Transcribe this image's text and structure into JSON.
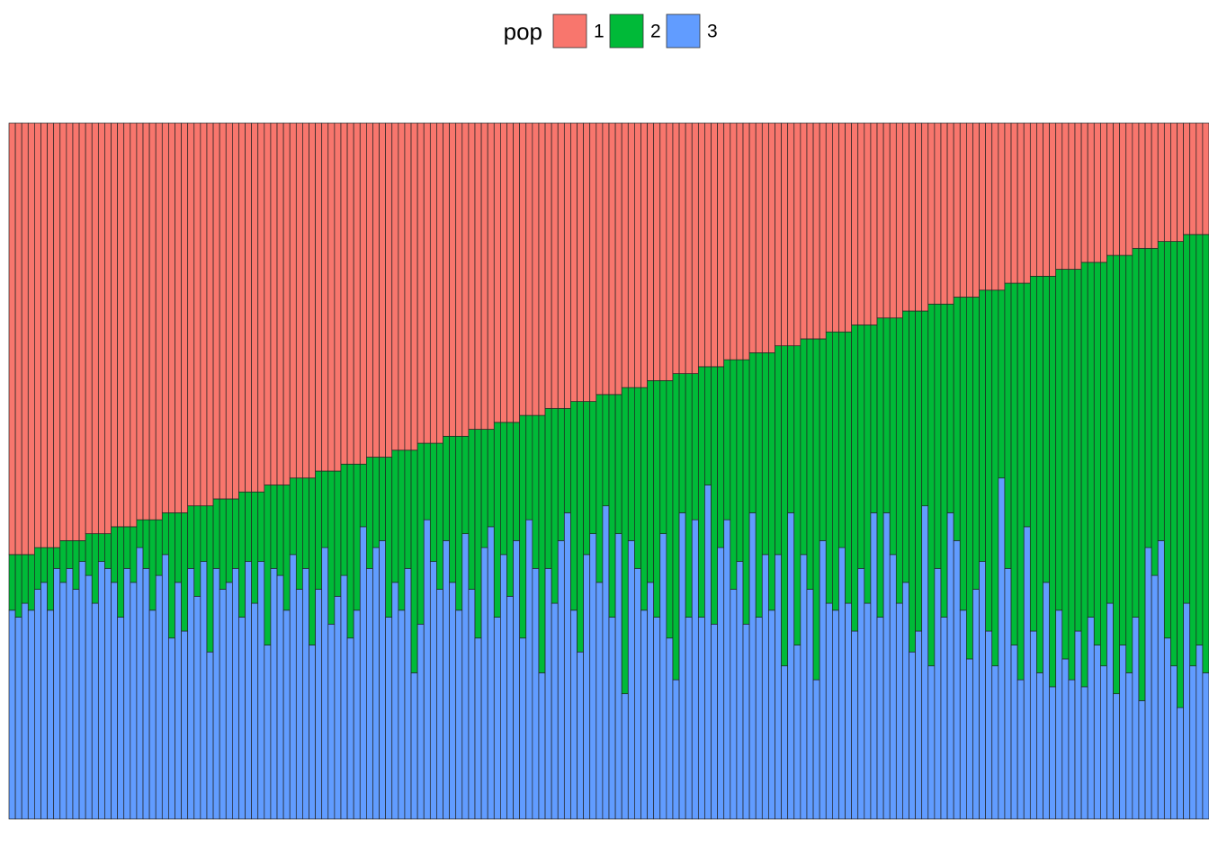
{
  "chart_data": {
    "type": "stacked_bar",
    "legend_title": "pop",
    "legend_position": "top",
    "ylim": [
      0,
      1
    ],
    "series": [
      {
        "name": "1",
        "color": "#F8766D",
        "values": [
          0.62,
          0.62,
          0.62,
          0.62,
          0.61,
          0.61,
          0.61,
          0.61,
          0.6,
          0.6,
          0.6,
          0.6,
          0.59,
          0.59,
          0.59,
          0.59,
          0.58,
          0.58,
          0.58,
          0.58,
          0.57,
          0.57,
          0.57,
          0.57,
          0.56,
          0.56,
          0.56,
          0.56,
          0.55,
          0.55,
          0.55,
          0.55,
          0.54,
          0.54,
          0.54,
          0.54,
          0.53,
          0.53,
          0.53,
          0.53,
          0.52,
          0.52,
          0.52,
          0.52,
          0.51,
          0.51,
          0.51,
          0.51,
          0.5,
          0.5,
          0.5,
          0.5,
          0.49,
          0.49,
          0.49,
          0.49,
          0.48,
          0.48,
          0.48,
          0.48,
          0.47,
          0.47,
          0.47,
          0.47,
          0.46,
          0.46,
          0.46,
          0.46,
          0.45,
          0.45,
          0.45,
          0.45,
          0.44,
          0.44,
          0.44,
          0.44,
          0.43,
          0.43,
          0.43,
          0.43,
          0.42,
          0.42,
          0.42,
          0.42,
          0.41,
          0.41,
          0.41,
          0.41,
          0.4,
          0.4,
          0.4,
          0.4,
          0.39,
          0.39,
          0.39,
          0.39,
          0.38,
          0.38,
          0.38,
          0.38,
          0.37,
          0.37,
          0.37,
          0.37,
          0.36,
          0.36,
          0.36,
          0.36,
          0.35,
          0.35,
          0.35,
          0.35,
          0.34,
          0.34,
          0.34,
          0.34,
          0.33,
          0.33,
          0.33,
          0.33,
          0.32,
          0.32,
          0.32,
          0.32,
          0.31,
          0.31,
          0.31,
          0.31,
          0.3,
          0.3,
          0.3,
          0.3,
          0.29,
          0.29,
          0.29,
          0.29,
          0.28,
          0.28,
          0.28,
          0.28,
          0.27,
          0.27,
          0.27,
          0.27,
          0.26,
          0.26,
          0.26,
          0.26,
          0.25,
          0.25,
          0.25,
          0.25,
          0.24,
          0.24,
          0.24,
          0.24,
          0.23,
          0.23,
          0.23,
          0.23,
          0.22,
          0.22,
          0.22,
          0.22,
          0.21,
          0.21,
          0.21,
          0.21,
          0.2,
          0.2,
          0.2,
          0.2,
          0.19,
          0.19,
          0.19,
          0.19,
          0.18,
          0.18,
          0.18,
          0.18,
          0.17,
          0.17,
          0.17,
          0.17,
          0.16,
          0.16,
          0.16,
          0.16
        ]
      },
      {
        "name": "2",
        "color": "#00BA38",
        "values": [
          0.08,
          0.09,
          0.07,
          0.08,
          0.06,
          0.05,
          0.09,
          0.03,
          0.06,
          0.04,
          0.07,
          0.03,
          0.06,
          0.1,
          0.04,
          0.05,
          0.08,
          0.13,
          0.06,
          0.08,
          0.04,
          0.07,
          0.13,
          0.08,
          0.06,
          0.18,
          0.1,
          0.17,
          0.09,
          0.13,
          0.08,
          0.21,
          0.1,
          0.13,
          0.12,
          0.1,
          0.18,
          0.1,
          0.16,
          0.1,
          0.23,
          0.12,
          0.13,
          0.18,
          0.11,
          0.16,
          0.13,
          0.24,
          0.17,
          0.11,
          0.22,
          0.18,
          0.16,
          0.25,
          0.21,
          0.09,
          0.16,
          0.13,
          0.12,
          0.23,
          0.19,
          0.23,
          0.17,
          0.32,
          0.26,
          0.11,
          0.17,
          0.21,
          0.15,
          0.21,
          0.25,
          0.14,
          0.23,
          0.3,
          0.17,
          0.14,
          0.28,
          0.19,
          0.25,
          0.17,
          0.32,
          0.15,
          0.22,
          0.37,
          0.23,
          0.28,
          0.19,
          0.15,
          0.3,
          0.36,
          0.22,
          0.19,
          0.27,
          0.16,
          0.32,
          0.2,
          0.44,
          0.22,
          0.26,
          0.32,
          0.29,
          0.34,
          0.22,
          0.37,
          0.44,
          0.2,
          0.35,
          0.21,
          0.36,
          0.17,
          0.37,
          0.26,
          0.23,
          0.33,
          0.29,
          0.38,
          0.23,
          0.38,
          0.29,
          0.37,
          0.3,
          0.46,
          0.24,
          0.43,
          0.31,
          0.36,
          0.49,
          0.29,
          0.39,
          0.4,
          0.31,
          0.39,
          0.44,
          0.35,
          0.4,
          0.27,
          0.43,
          0.28,
          0.34,
          0.41,
          0.39,
          0.49,
          0.46,
          0.28,
          0.52,
          0.38,
          0.45,
          0.3,
          0.35,
          0.45,
          0.52,
          0.42,
          0.39,
          0.49,
          0.54,
          0.27,
          0.41,
          0.52,
          0.57,
          0.35,
          0.51,
          0.57,
          0.44,
          0.59,
          0.49,
          0.56,
          0.59,
          0.52,
          0.61,
          0.51,
          0.55,
          0.58,
          0.5,
          0.63,
          0.56,
          0.6,
          0.53,
          0.65,
          0.43,
          0.47,
          0.43,
          0.57,
          0.61,
          0.67,
          0.53,
          0.62,
          0.59,
          0.63
        ]
      },
      {
        "name": "3",
        "color": "#619CFF",
        "values": [
          0.3,
          0.29,
          0.31,
          0.3,
          0.33,
          0.34,
          0.3,
          0.36,
          0.34,
          0.36,
          0.33,
          0.37,
          0.35,
          0.31,
          0.37,
          0.36,
          0.34,
          0.29,
          0.36,
          0.34,
          0.39,
          0.36,
          0.3,
          0.35,
          0.38,
          0.26,
          0.34,
          0.27,
          0.36,
          0.32,
          0.37,
          0.24,
          0.36,
          0.33,
          0.34,
          0.36,
          0.29,
          0.37,
          0.31,
          0.37,
          0.25,
          0.36,
          0.35,
          0.3,
          0.38,
          0.33,
          0.36,
          0.25,
          0.33,
          0.39,
          0.28,
          0.32,
          0.35,
          0.26,
          0.3,
          0.42,
          0.36,
          0.39,
          0.4,
          0.29,
          0.34,
          0.3,
          0.36,
          0.21,
          0.28,
          0.43,
          0.37,
          0.33,
          0.4,
          0.34,
          0.3,
          0.41,
          0.33,
          0.26,
          0.39,
          0.42,
          0.29,
          0.38,
          0.32,
          0.4,
          0.26,
          0.43,
          0.36,
          0.21,
          0.36,
          0.31,
          0.4,
          0.44,
          0.3,
          0.24,
          0.38,
          0.41,
          0.34,
          0.45,
          0.29,
          0.41,
          0.18,
          0.4,
          0.36,
          0.3,
          0.34,
          0.29,
          0.41,
          0.26,
          0.2,
          0.44,
          0.29,
          0.43,
          0.29,
          0.48,
          0.28,
          0.39,
          0.43,
          0.33,
          0.37,
          0.28,
          0.44,
          0.29,
          0.38,
          0.3,
          0.38,
          0.22,
          0.44,
          0.25,
          0.38,
          0.33,
          0.2,
          0.4,
          0.31,
          0.3,
          0.39,
          0.31,
          0.27,
          0.36,
          0.31,
          0.44,
          0.29,
          0.44,
          0.38,
          0.31,
          0.34,
          0.24,
          0.27,
          0.45,
          0.22,
          0.36,
          0.29,
          0.44,
          0.4,
          0.3,
          0.23,
          0.33,
          0.37,
          0.27,
          0.22,
          0.49,
          0.36,
          0.25,
          0.2,
          0.42,
          0.27,
          0.21,
          0.34,
          0.19,
          0.3,
          0.23,
          0.2,
          0.27,
          0.19,
          0.29,
          0.25,
          0.22,
          0.31,
          0.18,
          0.25,
          0.21,
          0.29,
          0.17,
          0.39,
          0.35,
          0.4,
          0.26,
          0.22,
          0.16,
          0.31,
          0.22,
          0.25,
          0.21
        ]
      }
    ]
  }
}
